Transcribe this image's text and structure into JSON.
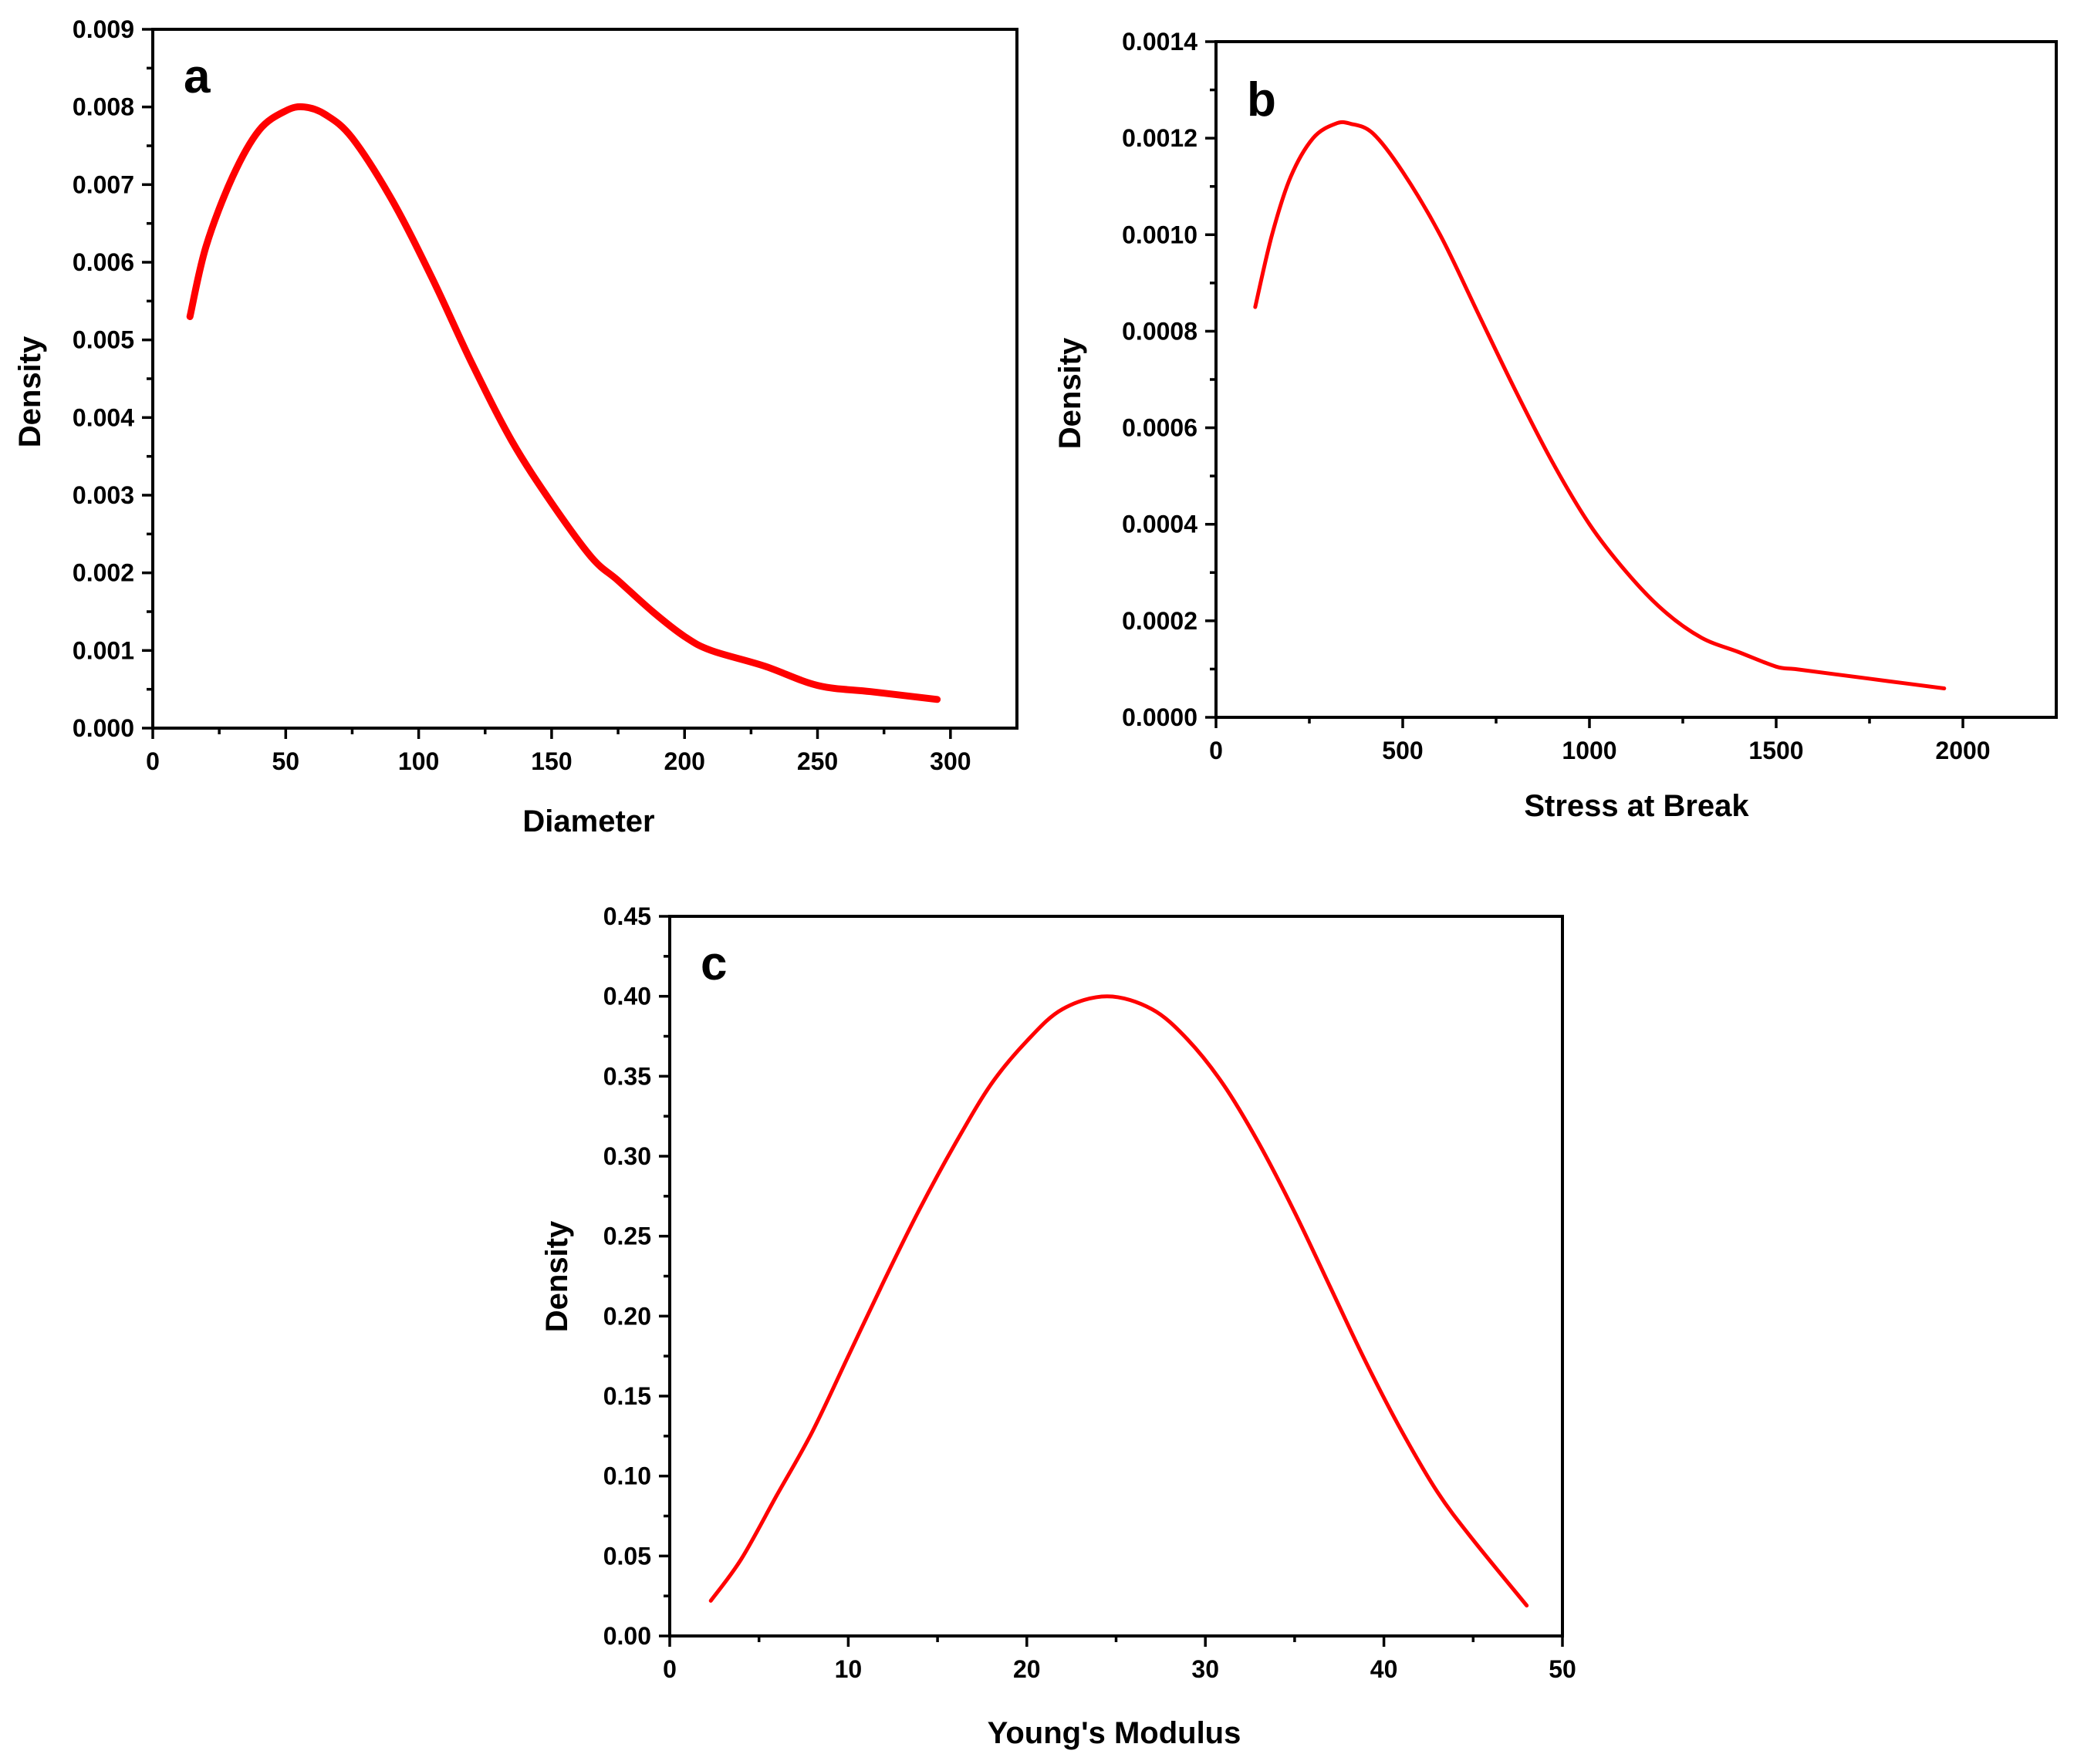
{
  "chart_data": [
    {
      "type": "line",
      "panel_label": "a",
      "title": "",
      "xlabel": "Diameter",
      "ylabel": "Density",
      "xlim": [
        0,
        325
      ],
      "ylim": [
        0,
        0.009
      ],
      "xticks": [
        0,
        50,
        100,
        150,
        200,
        250,
        300
      ],
      "xtick_labels": [
        "0",
        "50",
        "100",
        "150",
        "200",
        "250",
        "300"
      ],
      "yticks": [
        0,
        0.001,
        0.002,
        0.003,
        0.004,
        0.005,
        0.006,
        0.007,
        0.008,
        0.009
      ],
      "ytick_labels": [
        "0.000",
        "0.001",
        "0.002",
        "0.003",
        "0.004",
        "0.005",
        "0.006",
        "0.007",
        "0.008",
        "0.009"
      ],
      "grid": false,
      "color": "#ff0000",
      "series": [
        {
          "name": "Density",
          "x": [
            14,
            20,
            30,
            40,
            50,
            57,
            65,
            75,
            90,
            105,
            120,
            135,
            150,
            165,
            175,
            188,
            200,
            210,
            230,
            250,
            270,
            295
          ],
          "y": [
            0.0053,
            0.0062,
            0.0071,
            0.0077,
            0.00795,
            0.008,
            0.0079,
            0.0076,
            0.0068,
            0.0058,
            0.0047,
            0.0037,
            0.0029,
            0.0022,
            0.0019,
            0.0015,
            0.00118,
            0.001,
            0.0008,
            0.00055,
            0.00047,
            0.00037
          ]
        }
      ]
    },
    {
      "type": "line",
      "panel_label": "b",
      "title": "",
      "xlabel": "Stress at Break",
      "ylabel": "Density",
      "xlim": [
        0,
        2250
      ],
      "ylim": [
        0,
        0.0014
      ],
      "xticks": [
        0,
        500,
        1000,
        1500,
        2000
      ],
      "xtick_labels": [
        "0",
        "500",
        "1000",
        "1500",
        "2000"
      ],
      "yticks": [
        0,
        0.0002,
        0.0004,
        0.0006,
        0.0008,
        0.001,
        0.0012,
        0.0014
      ],
      "ytick_labels": [
        "0.0000",
        "0.0002",
        "0.0004",
        "0.0006",
        "0.0008",
        "0.0010",
        "0.0012",
        "0.0014"
      ],
      "grid": false,
      "color": "#ff0000",
      "series": [
        {
          "name": "Density",
          "x": [
            105,
            150,
            200,
            260,
            320,
            360,
            420,
            500,
            600,
            700,
            800,
            900,
            1000,
            1100,
            1200,
            1300,
            1400,
            1500,
            1550,
            1650,
            1800,
            1950
          ],
          "y": [
            0.00085,
            0.001,
            0.00112,
            0.0012,
            0.00123,
            0.00123,
            0.00121,
            0.00113,
            0.001,
            0.00084,
            0.00068,
            0.00053,
            0.0004,
            0.0003,
            0.00022,
            0.000165,
            0.000135,
            0.000105,
            0.0001,
            9e-05,
            7.5e-05,
            6e-05
          ]
        }
      ]
    },
    {
      "type": "line",
      "panel_label": "c",
      "title": "",
      "xlabel": "Young's Modulus",
      "ylabel": "Density",
      "xlim": [
        0,
        50
      ],
      "ylim": [
        0,
        0.45
      ],
      "xticks": [
        0,
        10,
        20,
        30,
        40,
        50
      ],
      "xtick_labels": [
        "0",
        "10",
        "20",
        "30",
        "40",
        "50"
      ],
      "yticks": [
        0,
        0.05,
        0.1,
        0.15,
        0.2,
        0.25,
        0.3,
        0.35,
        0.4,
        0.45
      ],
      "ytick_labels": [
        "0.00",
        "0.05",
        "0.10",
        "0.15",
        "0.20",
        "0.25",
        "0.30",
        "0.35",
        "0.40",
        "0.45"
      ],
      "grid": false,
      "color": "#ff0000",
      "series": [
        {
          "name": "Density",
          "x": [
            2.3,
            4,
            6,
            8,
            10,
            12,
            14,
            16,
            18,
            20,
            22,
            24.5,
            27,
            29,
            31,
            33,
            35,
            37,
            39,
            41,
            43,
            45,
            48
          ],
          "y": [
            0.022,
            0.048,
            0.088,
            0.128,
            0.175,
            0.222,
            0.267,
            0.308,
            0.345,
            0.372,
            0.392,
            0.4,
            0.392,
            0.373,
            0.345,
            0.308,
            0.265,
            0.218,
            0.171,
            0.128,
            0.09,
            0.06,
            0.019
          ]
        }
      ]
    }
  ]
}
